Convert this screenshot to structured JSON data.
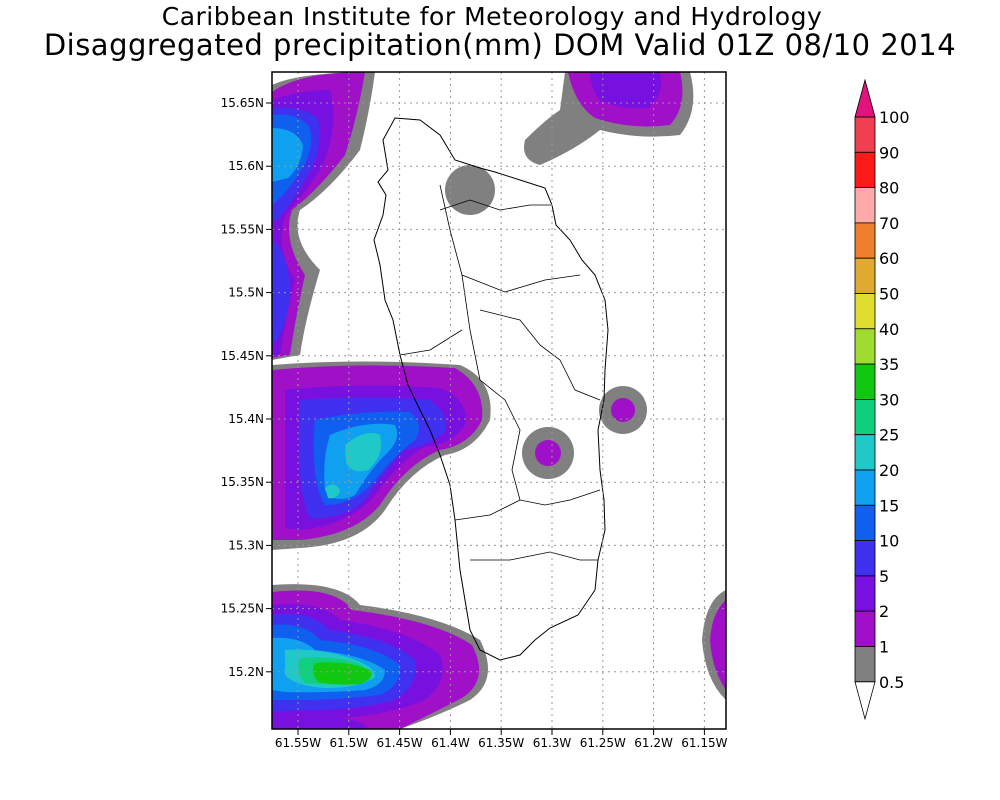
{
  "header": {
    "title": "Caribbean Institute for Meteorology and Hydrology",
    "subtitle": "Disaggregated precipitation(mm) DOM Valid 01Z 08/10 2014"
  },
  "axes": {
    "lat_labels": [
      "15.65N",
      "15.6N",
      "15.55N",
      "15.5N",
      "15.45N",
      "15.4N",
      "15.35N",
      "15.3N",
      "15.25N",
      "15.2N"
    ],
    "lon_labels": [
      "61.55W",
      "61.5W",
      "61.45W",
      "61.4W",
      "61.35W",
      "61.3W",
      "61.25W",
      "61.2W",
      "61.15W"
    ],
    "grid": true
  },
  "colorbar": {
    "levels": [
      "100",
      "90",
      "80",
      "70",
      "60",
      "50",
      "40",
      "35",
      "30",
      "25",
      "20",
      "15",
      "10",
      "5",
      "2",
      "1",
      "0.5"
    ],
    "colors": [
      "#f04050",
      "#ff1a1a",
      "#ffaaaa",
      "#f08030",
      "#e0aa30",
      "#e0dc30",
      "#a0dc30",
      "#10c810",
      "#10d080",
      "#20c8c8",
      "#10a0f0",
      "#1060f0",
      "#4030f0",
      "#7810e0",
      "#a010c8",
      "#808080"
    ],
    "top_arrow_color": "#e0147a",
    "bottom_arrow_color": "#ffffff"
  },
  "legend": {
    "gray": "#808080",
    "l1": "#a010c8",
    "l2": "#7810e0",
    "l5": "#4030f0",
    "l10": "#1060f0",
    "l15": "#10a0f0",
    "l20": "#20c8c8",
    "l25": "#10d080",
    "l30": "#10c810"
  }
}
